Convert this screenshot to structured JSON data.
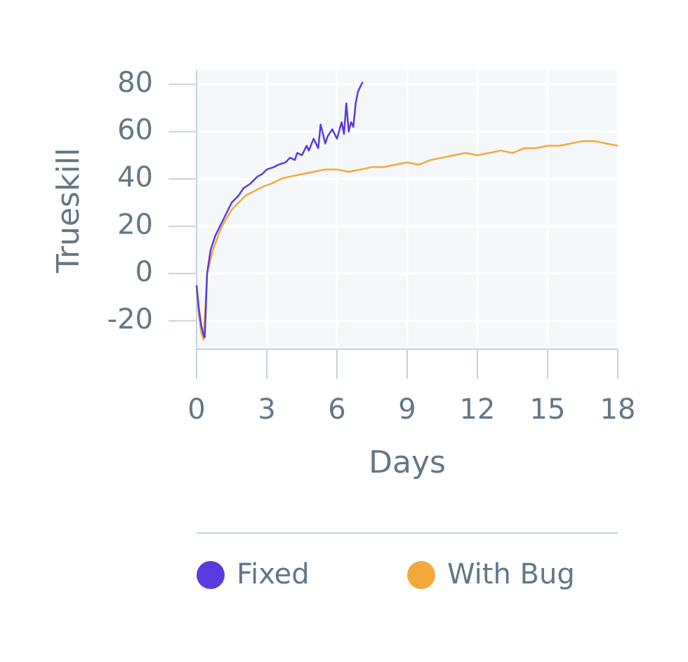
{
  "chart_data": {
    "type": "line",
    "xlabel": "Days",
    "ylabel": "Trueskill",
    "xlim": [
      0,
      18
    ],
    "xticks": [
      0,
      3,
      6,
      9,
      12,
      15,
      18
    ],
    "ylim": [
      -32,
      86
    ],
    "yticks": [
      -20,
      0,
      20,
      40,
      60,
      80
    ],
    "grid": true,
    "series": [
      {
        "name": "Fixed",
        "color": "#5a3be0",
        "x": [
          0,
          0.1,
          0.2,
          0.3,
          0.35,
          0.45,
          0.6,
          0.8,
          0.9,
          1.1,
          1.3,
          1.5,
          1.8,
          2.0,
          2.3,
          2.6,
          2.8,
          3.0,
          3.3,
          3.5,
          3.8,
          4.0,
          4.2,
          4.3,
          4.5,
          4.7,
          4.8,
          5.0,
          5.2,
          5.3,
          5.5,
          5.6,
          5.8,
          6.0,
          6.2,
          6.3,
          6.4,
          6.5,
          6.6,
          6.7,
          6.8,
          6.9,
          7.0,
          7.1
        ],
        "values": [
          -5,
          -15,
          -22,
          -26,
          -27,
          0,
          10,
          16,
          18,
          22,
          26,
          30,
          33,
          36,
          38,
          41,
          42,
          44,
          45,
          46,
          47,
          49,
          48,
          51,
          50,
          54,
          52,
          57,
          53,
          63,
          55,
          58,
          61,
          57,
          64,
          59,
          72,
          60,
          64,
          62,
          72,
          77,
          79,
          81
        ]
      },
      {
        "name": "With Bug",
        "color": "#f2a93b",
        "x": [
          0,
          0.1,
          0.2,
          0.3,
          0.45,
          0.7,
          1.0,
          1.2,
          1.5,
          1.8,
          2.1,
          2.5,
          2.9,
          3.2,
          3.6,
          4.0,
          4.5,
          5.0,
          5.5,
          6.0,
          6.5,
          7.0,
          7.5,
          8.0,
          8.5,
          9.0,
          9.5,
          10.0,
          10.5,
          11.0,
          11.5,
          12.0,
          12.5,
          13.0,
          13.5,
          14.0,
          14.5,
          15.0,
          15.5,
          16.0,
          16.5,
          17.0,
          17.5,
          18.0
        ],
        "values": [
          -5,
          -18,
          -25,
          -28,
          0,
          10,
          18,
          22,
          27,
          30,
          33,
          35,
          37,
          38,
          40,
          41,
          42,
          43,
          44,
          44,
          43,
          44,
          45,
          45,
          46,
          47,
          46,
          48,
          49,
          50,
          51,
          50,
          51,
          52,
          51,
          53,
          53,
          54,
          54,
          55,
          56,
          56,
          55,
          54
        ]
      }
    ]
  }
}
